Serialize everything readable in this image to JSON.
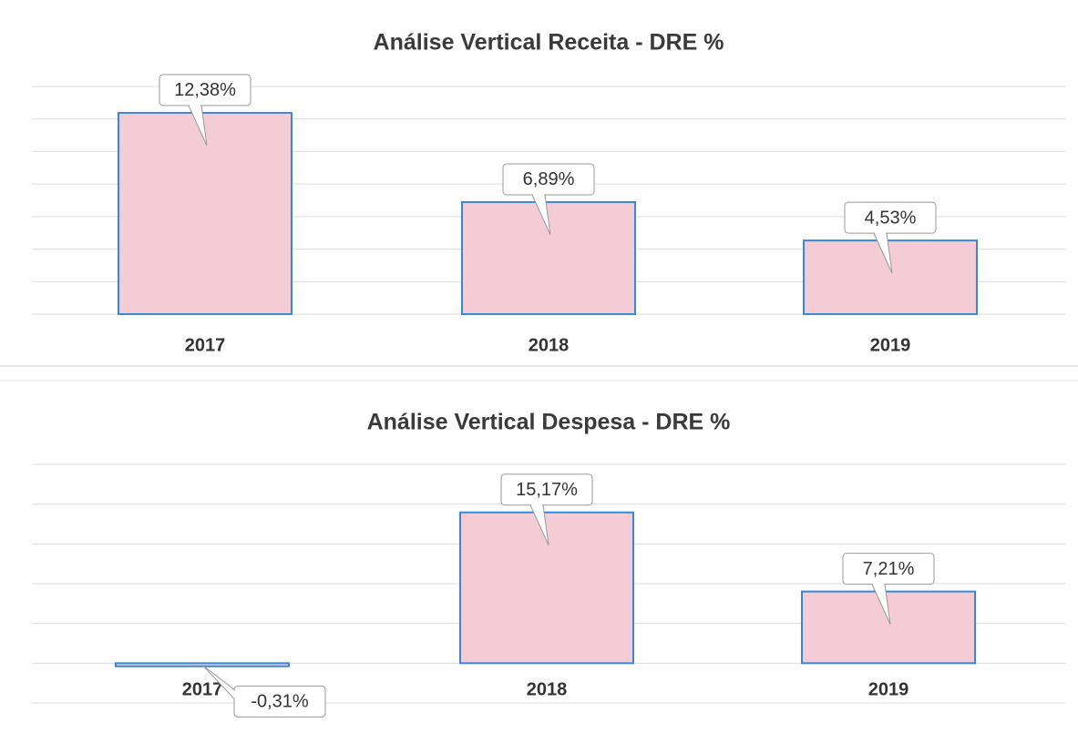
{
  "chart_data": [
    {
      "type": "bar",
      "title": "Análise Vertical Receita - DRE %",
      "categories": [
        "2017",
        "2018",
        "2019"
      ],
      "values": [
        12.38,
        6.89,
        4.53
      ],
      "value_labels": [
        "12,38%",
        "6,89%",
        "4,53%"
      ],
      "color": "#f3ccd6",
      "ylim": [
        0,
        14
      ],
      "yticks": [
        0,
        2,
        4,
        6,
        8,
        10,
        12,
        14
      ],
      "grid": true
    },
    {
      "type": "bar",
      "title": "Análise Vertical Despesa - DRE %",
      "categories": [
        "2017",
        "2018",
        "2019"
      ],
      "values": [
        -0.31,
        15.17,
        7.21
      ],
      "value_labels": [
        "-0,31%",
        "15,17%",
        "7,21%"
      ],
      "color": "#f3ccd6",
      "ylim": [
        -4,
        20
      ],
      "yticks": [
        -4,
        0,
        4,
        8,
        12,
        16,
        20
      ],
      "grid": true
    }
  ]
}
